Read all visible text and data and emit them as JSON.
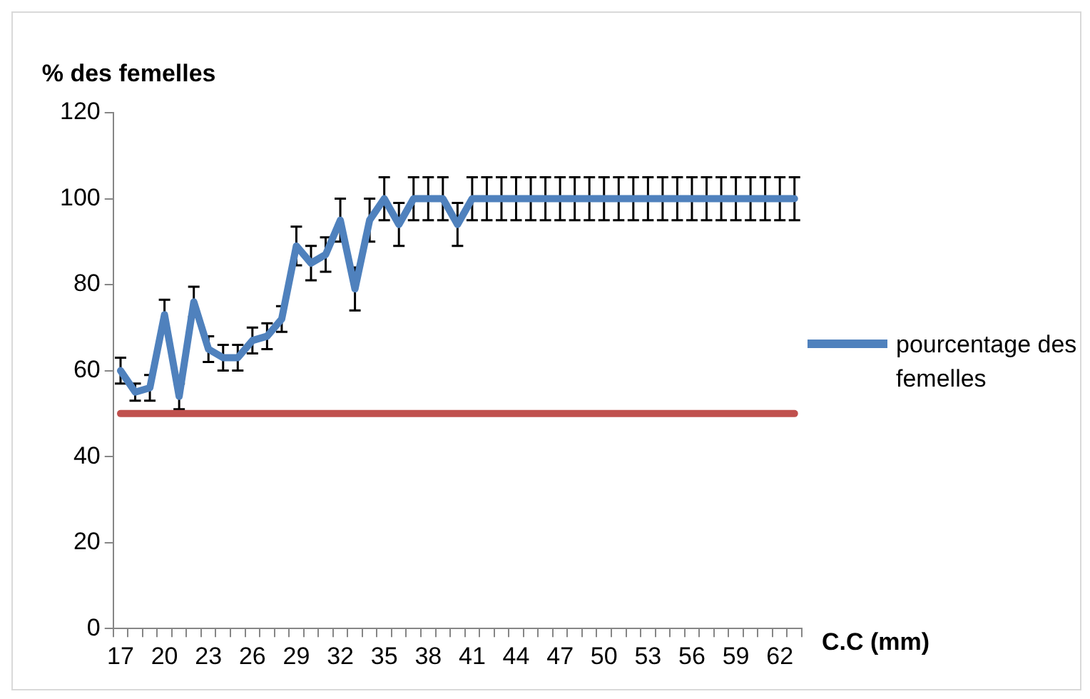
{
  "chart_data": {
    "type": "line",
    "xlabel": "C.C (mm)",
    "ylabel": "% des femelles",
    "categories": [
      "17",
      null,
      null,
      "20",
      null,
      null,
      "23",
      null,
      null,
      "26",
      null,
      null,
      "29",
      null,
      null,
      "32",
      null,
      null,
      "35",
      null,
      null,
      "38",
      null,
      null,
      "41",
      null,
      null,
      "44",
      null,
      null,
      "47",
      null,
      null,
      "50",
      null,
      null,
      "53",
      null,
      null,
      "56",
      null,
      null,
      "59",
      null,
      null,
      "62",
      null
    ],
    "series": [
      {
        "name": "pourcentage des femelles",
        "color": "#4f81bd",
        "values": [
          60,
          55,
          56,
          73,
          54,
          76,
          65,
          63,
          63,
          67,
          68,
          72,
          89,
          85,
          87,
          95,
          79,
          95,
          100,
          94,
          100,
          100,
          100,
          94,
          100,
          100,
          100,
          100,
          100,
          100,
          100,
          100,
          100,
          100,
          100,
          100,
          100,
          100,
          100,
          100,
          100,
          100,
          100,
          100,
          100,
          100,
          100
        ],
        "errors": [
          3,
          2,
          3,
          3.5,
          3,
          3.5,
          3,
          3,
          3,
          3,
          3,
          3,
          4.5,
          4,
          4,
          5,
          5,
          5,
          5,
          5,
          5,
          5,
          5,
          5,
          5,
          5,
          5,
          5,
          5,
          5,
          5,
          5,
          5,
          5,
          5,
          5,
          5,
          5,
          5,
          5,
          5,
          5,
          5,
          5,
          5,
          5,
          5
        ]
      },
      {
        "color": "#c0504d",
        "values": [
          50,
          50,
          50,
          50,
          50,
          50,
          50,
          50,
          50,
          50,
          50,
          50,
          50,
          50,
          50,
          50,
          50,
          50,
          50,
          50,
          50,
          50,
          50,
          50,
          50,
          50,
          50,
          50,
          50,
          50,
          50,
          50,
          50,
          50,
          50,
          50,
          50,
          50,
          50,
          50,
          50,
          50,
          50,
          50,
          50,
          50,
          50
        ]
      }
    ],
    "ylim": [
      0,
      120
    ],
    "yticks": [
      0,
      20,
      40,
      60,
      80,
      100,
      120
    ],
    "grid": false,
    "legend": "right",
    "marker": "none"
  }
}
